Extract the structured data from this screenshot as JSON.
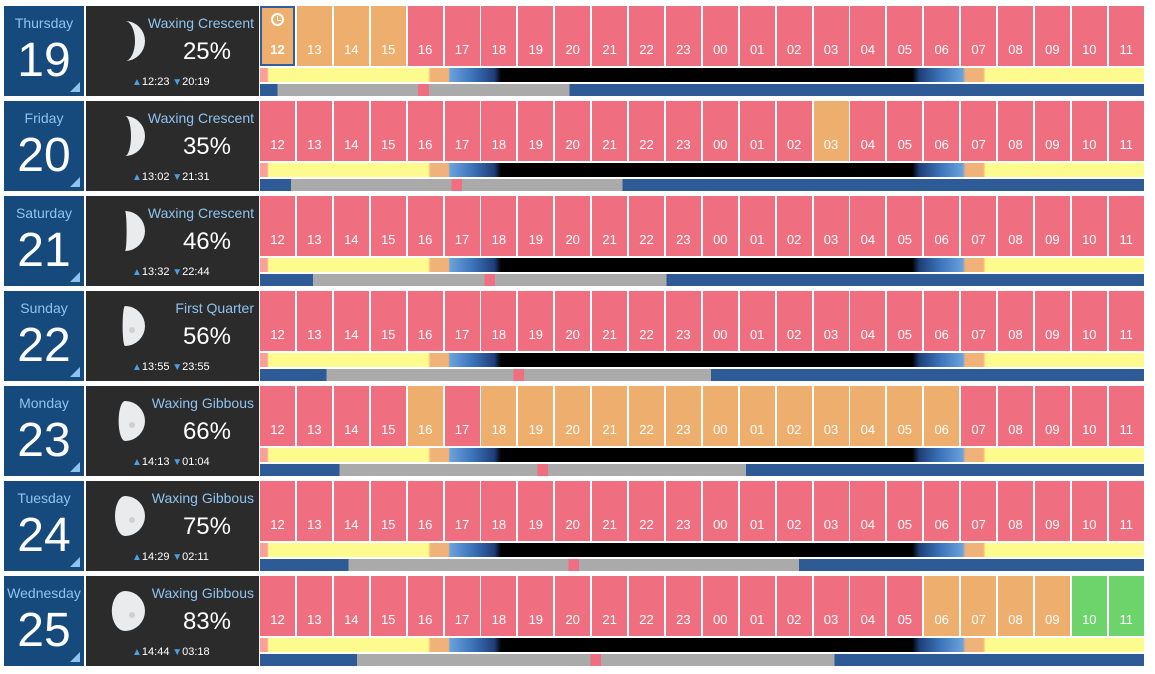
{
  "current_hour_icon": "clock-icon",
  "colors": {
    "date_bg": "#174a7c",
    "moon_bg": "#2b2b2b",
    "accent": "#8fc3ef",
    "bad": "#ef6f80",
    "fair": "#eeae6e",
    "good": "#6dd36b"
  },
  "hours": [
    "12",
    "13",
    "14",
    "15",
    "16",
    "17",
    "18",
    "19",
    "20",
    "21",
    "22",
    "23",
    "00",
    "01",
    "02",
    "03",
    "04",
    "05",
    "06",
    "07",
    "08",
    "09",
    "10",
    "11"
  ],
  "days": [
    {
      "dayname": "Thursday",
      "daynum": "19",
      "phase": "Waxing Crescent",
      "illumination": "25%",
      "moonrise": "12:23",
      "moonset": "20:19",
      "conditions": [
        "fair-current",
        "fair",
        "fair",
        "fair",
        "bad",
        "bad",
        "bad",
        "bad",
        "bad",
        "bad",
        "bad",
        "bad",
        "bad",
        "bad",
        "bad",
        "bad",
        "bad",
        "bad",
        "bad",
        "bad",
        "bad",
        "bad",
        "bad",
        "bad"
      ]
    },
    {
      "dayname": "Friday",
      "daynum": "20",
      "phase": "Waxing Crescent",
      "illumination": "35%",
      "moonrise": "13:02",
      "moonset": "21:31",
      "conditions": [
        "bad",
        "bad",
        "bad",
        "bad",
        "bad",
        "bad",
        "bad",
        "bad",
        "bad",
        "bad",
        "bad",
        "bad",
        "bad",
        "bad",
        "bad",
        "fair",
        "bad",
        "bad",
        "bad",
        "bad",
        "bad",
        "bad",
        "bad",
        "bad"
      ]
    },
    {
      "dayname": "Saturday",
      "daynum": "21",
      "phase": "Waxing Crescent",
      "illumination": "46%",
      "moonrise": "13:32",
      "moonset": "22:44",
      "conditions": [
        "bad",
        "bad",
        "bad",
        "bad",
        "bad",
        "bad",
        "bad",
        "bad",
        "bad",
        "bad",
        "bad",
        "bad",
        "bad",
        "bad",
        "bad",
        "bad",
        "bad",
        "bad",
        "bad",
        "bad",
        "bad",
        "bad",
        "bad",
        "bad"
      ]
    },
    {
      "dayname": "Sunday",
      "daynum": "22",
      "phase": "First Quarter",
      "illumination": "56%",
      "moonrise": "13:55",
      "moonset": "23:55",
      "conditions": [
        "bad",
        "bad",
        "bad",
        "bad",
        "bad",
        "bad",
        "bad",
        "bad",
        "bad",
        "bad",
        "bad",
        "bad",
        "bad",
        "bad",
        "bad",
        "bad",
        "bad",
        "bad",
        "bad",
        "bad",
        "bad",
        "bad",
        "bad",
        "bad"
      ]
    },
    {
      "dayname": "Monday",
      "daynum": "23",
      "phase": "Waxing Gibbous",
      "illumination": "66%",
      "moonrise": "14:13",
      "moonset": "01:04",
      "conditions": [
        "bad",
        "bad",
        "bad",
        "bad",
        "fair",
        "bad",
        "fair",
        "fair",
        "fair",
        "fair",
        "fair",
        "fair",
        "fair",
        "fair",
        "fair",
        "fair",
        "fair",
        "fair",
        "fair",
        "bad",
        "bad",
        "bad",
        "bad",
        "bad"
      ]
    },
    {
      "dayname": "Tuesday",
      "daynum": "24",
      "phase": "Waxing Gibbous",
      "illumination": "75%",
      "moonrise": "14:29",
      "moonset": "02:11",
      "conditions": [
        "bad",
        "bad",
        "bad",
        "bad",
        "bad",
        "bad",
        "bad",
        "bad",
        "bad",
        "bad",
        "bad",
        "bad",
        "bad",
        "bad",
        "bad",
        "bad",
        "bad",
        "bad",
        "bad",
        "bad",
        "bad",
        "bad",
        "bad",
        "bad"
      ]
    },
    {
      "dayname": "Wednesday",
      "daynum": "25",
      "phase": "Waxing Gibbous",
      "illumination": "83%",
      "moonrise": "14:44",
      "moonset": "03:18",
      "conditions": [
        "bad",
        "bad",
        "bad",
        "bad",
        "bad",
        "bad",
        "bad",
        "bad",
        "bad",
        "bad",
        "bad",
        "bad",
        "bad",
        "bad",
        "bad",
        "bad",
        "bad",
        "bad",
        "fair",
        "fair",
        "fair",
        "fair",
        "good",
        "good"
      ]
    }
  ]
}
